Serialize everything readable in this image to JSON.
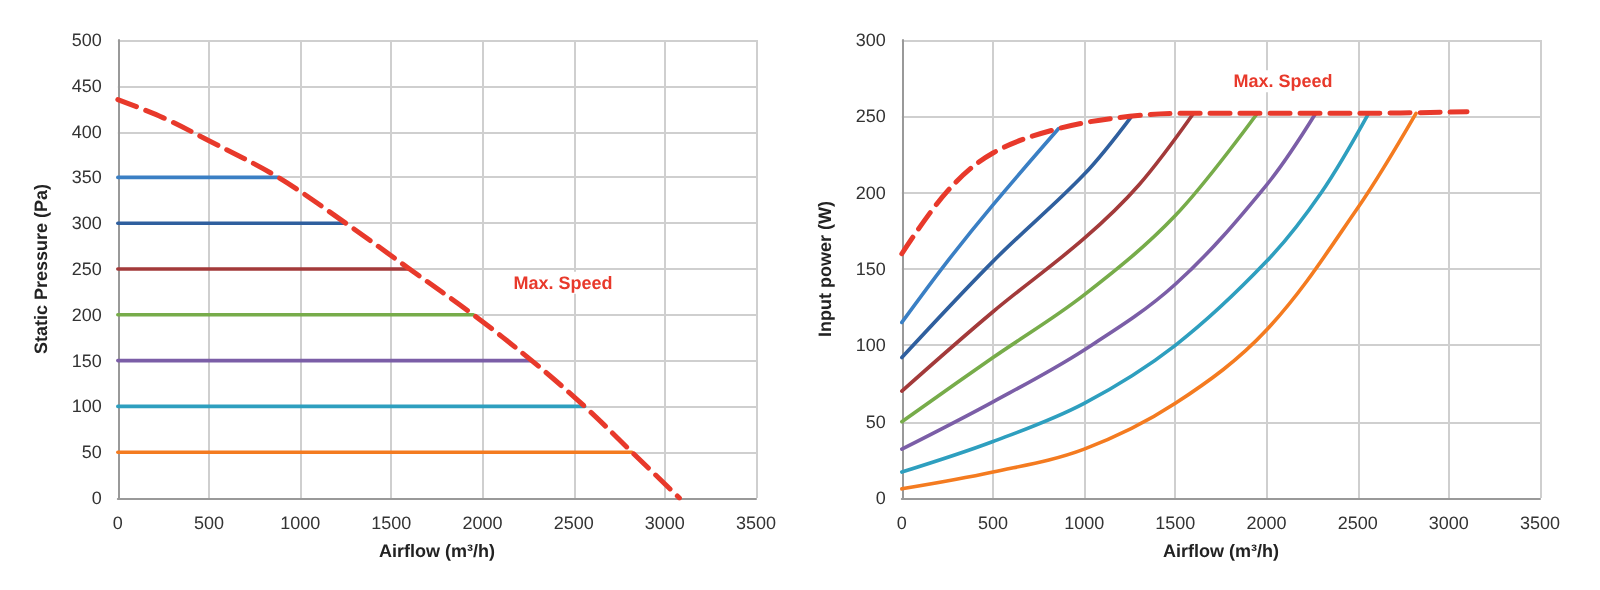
{
  "chart_data": [
    {
      "type": "line",
      "xlabel": "Airflow (m³/h)",
      "ylabel": "Static Pressure (Pa)",
      "xlim": [
        0,
        3500
      ],
      "xticks": [
        0,
        500,
        1000,
        1500,
        2000,
        2500,
        3000,
        3500
      ],
      "ylim": [
        0,
        500
      ],
      "yticks": [
        0,
        50,
        100,
        150,
        200,
        250,
        300,
        350,
        400,
        450,
        500
      ],
      "grid": true,
      "marker": "none",
      "line_style": "solid",
      "annotations": [
        "Max. Speed"
      ],
      "series": [
        {
          "color": "#3a7fc4",
          "x": [
            0,
            880
          ],
          "values": [
            350,
            350
          ]
        },
        {
          "color": "#2f5f9e",
          "x": [
            0,
            1250
          ],
          "values": [
            300,
            300
          ]
        },
        {
          "color": "#a33a3a",
          "x": [
            0,
            1600
          ],
          "values": [
            250,
            250
          ]
        },
        {
          "color": "#77ac4a",
          "x": [
            0,
            1950
          ],
          "values": [
            200,
            200
          ]
        },
        {
          "color": "#7b5ea7",
          "x": [
            0,
            2270
          ],
          "values": [
            150,
            150
          ]
        },
        {
          "color": "#2e9fbf",
          "x": [
            0,
            2560
          ],
          "values": [
            100,
            100
          ]
        },
        {
          "color": "#f47b20",
          "x": [
            0,
            2820
          ],
          "values": [
            50,
            50
          ]
        },
        {
          "color": "#e8392b",
          "line_style": "dashed",
          "x": [
            0,
            250,
            500,
            880,
            1250,
            1600,
            1950,
            2270,
            2560,
            2820,
            3080
          ],
          "values": [
            435,
            415,
            390,
            350,
            300,
            250,
            200,
            150,
            100,
            50,
            0
          ]
        }
      ]
    },
    {
      "type": "line",
      "xlabel": "Airflow (m³/h)",
      "ylabel": "Input power (W)",
      "xlim": [
        0,
        3500
      ],
      "xticks": [
        0,
        500,
        1000,
        1500,
        2000,
        2500,
        3000,
        3500
      ],
      "ylim": [
        0,
        300
      ],
      "yticks": [
        0,
        50,
        100,
        150,
        200,
        250,
        300
      ],
      "grid": true,
      "marker": "none",
      "line_style": "solid",
      "annotations": [
        "Max. Speed"
      ],
      "series": [
        {
          "color": "#3a7fc4",
          "x": [
            0,
            250,
            500,
            860
          ],
          "values": [
            115,
            155,
            192,
            242
          ]
        },
        {
          "color": "#2f5f9e",
          "x": [
            0,
            500,
            1000,
            1260
          ],
          "values": [
            92,
            155,
            212,
            250
          ]
        },
        {
          "color": "#a33a3a",
          "x": [
            0,
            500,
            1000,
            1300,
            1600
          ],
          "values": [
            70,
            122,
            170,
            205,
            252
          ]
        },
        {
          "color": "#77ac4a",
          "x": [
            0,
            500,
            1000,
            1500,
            1950
          ],
          "values": [
            50,
            92,
            133,
            185,
            252
          ]
        },
        {
          "color": "#7b5ea7",
          "x": [
            0,
            500,
            1000,
            1500,
            2000,
            2270
          ],
          "values": [
            32,
            63,
            97,
            140,
            205,
            252
          ]
        },
        {
          "color": "#2e9fbf",
          "x": [
            0,
            500,
            1000,
            1500,
            2000,
            2300,
            2560
          ],
          "values": [
            17,
            37,
            62,
            100,
            155,
            200,
            252
          ]
        },
        {
          "color": "#f47b20",
          "x": [
            0,
            500,
            1000,
            1500,
            2000,
            2500,
            2820
          ],
          "values": [
            6,
            17,
            32,
            62,
            110,
            190,
            252
          ]
        },
        {
          "color": "#e8392b",
          "line_style": "dashed",
          "x": [
            0,
            250,
            500,
            860,
            1250,
            1600,
            2000,
            2500,
            3100
          ],
          "values": [
            160,
            201,
            226,
            242,
            250,
            252,
            252,
            252,
            253
          ]
        }
      ]
    }
  ]
}
